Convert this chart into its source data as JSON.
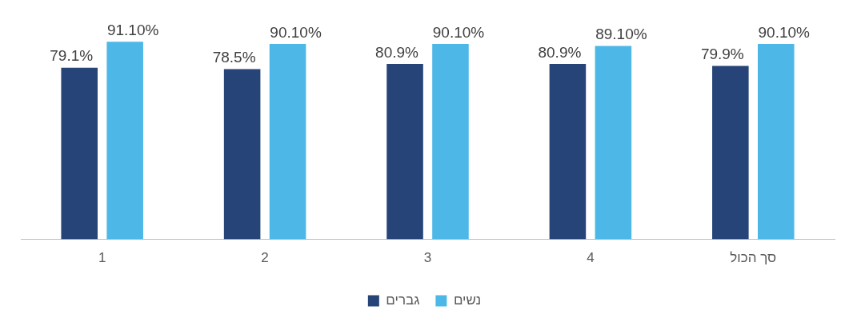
{
  "chart_data": {
    "type": "bar",
    "categories": [
      "1",
      "2",
      "3",
      "4",
      "סך הכול"
    ],
    "series": [
      {
        "name": "גברים",
        "color": "#264478",
        "values": [
          79.1,
          78.5,
          80.9,
          80.9,
          79.9
        ],
        "value_labels": [
          "79.1%",
          "78.5%",
          "80.9%",
          "80.9%",
          "79.9%"
        ]
      },
      {
        "name": "נשים",
        "color": "#4db8e8",
        "values": [
          91.1,
          90.1,
          90.1,
          89.1,
          90.1
        ],
        "value_labels": [
          "91.10%",
          "90.10%",
          "90.10%",
          "89.10%",
          "90.10%"
        ]
      }
    ],
    "relative": false,
    "grid": false,
    "legend": "bottom"
  }
}
